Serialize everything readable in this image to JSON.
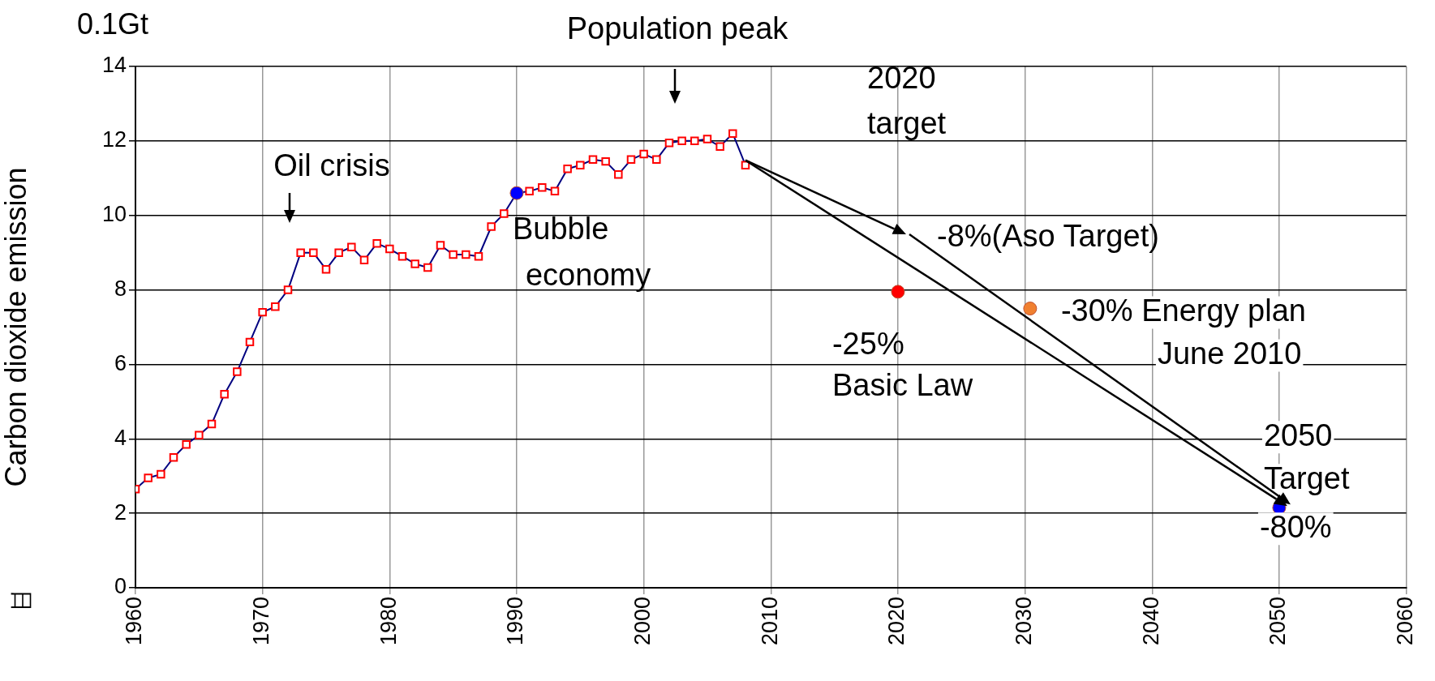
{
  "chart_data": {
    "type": "line",
    "ylabel": "Carbon dioxide emission",
    "xlim": [
      1960,
      2060
    ],
    "xticks": [
      1960,
      1970,
      1980,
      1990,
      2000,
      2010,
      2020,
      2030,
      2040,
      2050,
      2060
    ],
    "ylim": [
      0,
      14
    ],
    "yticks": [
      0,
      2,
      4,
      6,
      8,
      10,
      12,
      14
    ],
    "grid": true,
    "legend": false,
    "series": [
      {
        "color": "#000080",
        "marker": "square",
        "x": [
          1960,
          1961,
          1962,
          1963,
          1964,
          1965,
          1966,
          1967,
          1968,
          1969,
          1970,
          1971,
          1972,
          1973,
          1974,
          1975,
          1976,
          1977,
          1978,
          1979,
          1980,
          1981,
          1982,
          1983,
          1984,
          1985,
          1986,
          1987,
          1988,
          1989,
          1990,
          1991,
          1992,
          1993,
          1994,
          1995,
          1996,
          1997,
          1998,
          1999,
          2000,
          2001,
          2002,
          2003,
          2004,
          2005,
          2006,
          2007,
          2008
        ],
        "values": [
          2.65,
          2.95,
          3.05,
          3.5,
          3.85,
          4.1,
          4.4,
          5.2,
          5.8,
          6.6,
          7.4,
          7.55,
          8.0,
          9.0,
          9.0,
          8.55,
          9.0,
          9.15,
          8.8,
          9.25,
          9.1,
          8.9,
          8.7,
          8.6,
          9.2,
          8.95,
          8.95,
          8.9,
          9.7,
          10.05,
          10.6,
          10.65,
          10.75,
          10.65,
          11.25,
          11.35,
          11.5,
          11.45,
          11.1,
          11.5,
          11.65,
          11.5,
          11.95,
          12.0,
          12.0,
          12.05,
          11.85,
          12.2,
          11.35
        ]
      },
      {
        "type": "scatter",
        "marker": "circle",
        "x": [
          1990,
          2020,
          2030.4,
          2050
        ],
        "values": [
          10.6,
          7.95,
          7.5,
          2.15
        ],
        "colors": [
          "#0000ff",
          "#ff0000",
          "#f08030",
          "#0000ff"
        ]
      }
    ],
    "annotations": [
      "0.1Gt",
      "日",
      "Oil crisis",
      "Population peak",
      {
        "text": "Bubble\neconomy",
        "x": 1990,
        "y": 10.6
      },
      "2020\ntarget",
      "-8%(Aso Target)",
      {
        "text": "-25%\nBasic Law",
        "x": 2020,
        "y": 7.95
      },
      {
        "text": "-30% Energy plan\nJune 2010",
        "x": 2030.4,
        "y": 7.5
      },
      {
        "text": "2050\nTarget\n-80%",
        "x": 2050,
        "y": 2.15
      }
    ]
  }
}
